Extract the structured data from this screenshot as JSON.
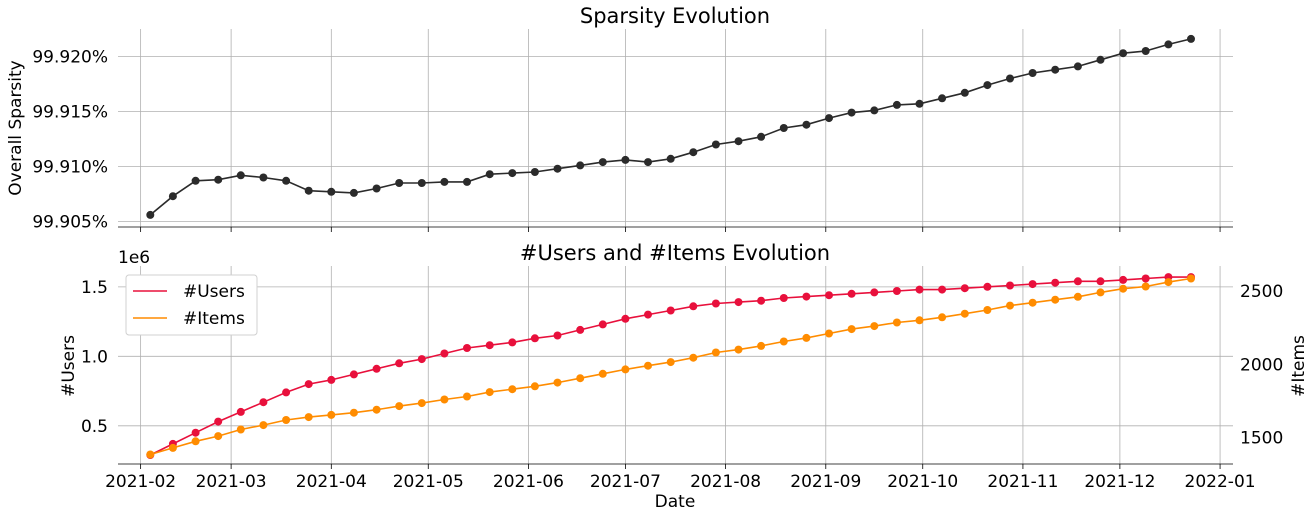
{
  "chart_data": [
    {
      "type": "line",
      "title": "Sparsity Evolution",
      "xlabel": "",
      "ylabel": "Overall Sparsity",
      "y_unit": "%",
      "x_axis": "date",
      "x_range": [
        "2021-01-25",
        "2022-01-05"
      ],
      "ylim": [
        99.9045,
        99.9225
      ],
      "yticks": [
        99.905,
        99.91,
        99.915,
        99.92
      ],
      "ytick_labels": [
        "99.905%",
        "99.910%",
        "99.915%",
        "99.920%"
      ],
      "grid": true,
      "color": "#2b2b2b",
      "series": [
        {
          "x": [
            "2021-02-04",
            "2021-02-11",
            "2021-02-18",
            "2021-02-25",
            "2021-03-04",
            "2021-03-11",
            "2021-03-18",
            "2021-03-25",
            "2021-04-01",
            "2021-04-08",
            "2021-04-15",
            "2021-04-22",
            "2021-04-29",
            "2021-05-06",
            "2021-05-13",
            "2021-05-20",
            "2021-05-27",
            "2021-06-03",
            "2021-06-10",
            "2021-06-17",
            "2021-06-24",
            "2021-07-01",
            "2021-07-08",
            "2021-07-15",
            "2021-07-22",
            "2021-07-29",
            "2021-08-05",
            "2021-08-12",
            "2021-08-19",
            "2021-08-26",
            "2021-09-02",
            "2021-09-09",
            "2021-09-16",
            "2021-09-23",
            "2021-09-30",
            "2021-10-07",
            "2021-10-14",
            "2021-10-21",
            "2021-10-28",
            "2021-11-04",
            "2021-11-11",
            "2021-11-18",
            "2021-11-25",
            "2021-12-02",
            "2021-12-09",
            "2021-12-16",
            "2021-12-23"
          ],
          "values": [
            99.9056,
            99.9073,
            99.9087,
            99.9088,
            99.9092,
            99.909,
            99.9087,
            99.9078,
            99.9077,
            99.9076,
            99.908,
            99.9085,
            99.9085,
            99.9086,
            99.9086,
            99.9093,
            99.9094,
            99.9095,
            99.9098,
            99.9101,
            99.9104,
            99.9106,
            99.9104,
            99.9107,
            99.9113,
            99.912,
            99.9123,
            99.9127,
            99.9135,
            99.9138,
            99.9144,
            99.9149,
            99.9151,
            99.9156,
            99.9157,
            99.9162,
            99.9167,
            99.9174,
            99.918,
            99.9185,
            99.9188,
            99.9191,
            99.9197,
            99.9203,
            99.9205,
            99.9211,
            99.9216
          ]
        }
      ]
    },
    {
      "type": "line",
      "title": "#Users and #Items Evolution",
      "xlabel": "Date",
      "ylabel": "#Users",
      "y_offset_label": "1e6",
      "ylim": [
        0.225,
        1.65
      ],
      "yticks": [
        0.5,
        1.0,
        1.5
      ],
      "ytick_labels": [
        "0.5",
        "1.0",
        "1.5"
      ],
      "y2label": "#Items",
      "y2lim": [
        1320,
        2670
      ],
      "y2ticks": [
        1500,
        2000,
        2500
      ],
      "y2tick_labels": [
        "1500",
        "2000",
        "2500"
      ],
      "x_axis": "date",
      "x_range": [
        "2021-01-25",
        "2022-01-05"
      ],
      "xticks": [
        "2021-02-01",
        "2021-03-01",
        "2021-04-01",
        "2021-05-01",
        "2021-06-01",
        "2021-07-01",
        "2021-08-01",
        "2021-09-01",
        "2021-10-01",
        "2021-11-01",
        "2021-12-01",
        "2022-01-01"
      ],
      "xtick_labels": [
        "2021-02",
        "2021-03",
        "2021-04",
        "2021-05",
        "2021-06",
        "2021-07",
        "2021-08",
        "2021-09",
        "2021-10",
        "2021-11",
        "2021-12",
        "2022-01"
      ],
      "grid": true,
      "legend": "top-left",
      "series": [
        {
          "name": "#Users",
          "axis": "left",
          "color": "#e8103c",
          "x": [
            "2021-02-04",
            "2021-02-11",
            "2021-02-18",
            "2021-02-25",
            "2021-03-04",
            "2021-03-11",
            "2021-03-18",
            "2021-03-25",
            "2021-04-01",
            "2021-04-08",
            "2021-04-15",
            "2021-04-22",
            "2021-04-29",
            "2021-05-06",
            "2021-05-13",
            "2021-05-20",
            "2021-05-27",
            "2021-06-03",
            "2021-06-10",
            "2021-06-17",
            "2021-06-24",
            "2021-07-01",
            "2021-07-08",
            "2021-07-15",
            "2021-07-22",
            "2021-07-29",
            "2021-08-05",
            "2021-08-12",
            "2021-08-19",
            "2021-08-26",
            "2021-09-02",
            "2021-09-09",
            "2021-09-16",
            "2021-09-23",
            "2021-09-30",
            "2021-10-07",
            "2021-10-14",
            "2021-10-21",
            "2021-10-28",
            "2021-11-04",
            "2021-11-11",
            "2021-11-18",
            "2021-11-25",
            "2021-12-02",
            "2021-12-09",
            "2021-12-16",
            "2021-12-23"
          ],
          "values": [
            0.29,
            0.37,
            0.45,
            0.53,
            0.6,
            0.67,
            0.74,
            0.8,
            0.83,
            0.87,
            0.91,
            0.95,
            0.98,
            1.02,
            1.06,
            1.08,
            1.1,
            1.13,
            1.15,
            1.19,
            1.23,
            1.27,
            1.3,
            1.33,
            1.36,
            1.38,
            1.39,
            1.4,
            1.42,
            1.43,
            1.44,
            1.45,
            1.46,
            1.47,
            1.48,
            1.48,
            1.49,
            1.5,
            1.51,
            1.52,
            1.53,
            1.54,
            1.54,
            1.55,
            1.56,
            1.57,
            1.57
          ]
        },
        {
          "name": "#Items",
          "axis": "right",
          "color": "#ff8c00",
          "x": [
            "2021-02-04",
            "2021-02-11",
            "2021-02-18",
            "2021-02-25",
            "2021-03-04",
            "2021-03-11",
            "2021-03-18",
            "2021-03-25",
            "2021-04-01",
            "2021-04-08",
            "2021-04-15",
            "2021-04-22",
            "2021-04-29",
            "2021-05-06",
            "2021-05-13",
            "2021-05-20",
            "2021-05-27",
            "2021-06-03",
            "2021-06-10",
            "2021-06-17",
            "2021-06-24",
            "2021-07-01",
            "2021-07-08",
            "2021-07-15",
            "2021-07-22",
            "2021-07-29",
            "2021-08-05",
            "2021-08-12",
            "2021-08-19",
            "2021-08-26",
            "2021-09-02",
            "2021-09-09",
            "2021-09-16",
            "2021-09-23",
            "2021-09-30",
            "2021-10-07",
            "2021-10-14",
            "2021-10-21",
            "2021-10-28",
            "2021-11-04",
            "2021-11-11",
            "2021-11-18",
            "2021-11-25",
            "2021-12-02",
            "2021-12-09",
            "2021-12-16",
            "2021-12-23"
          ],
          "values": [
            1385,
            1430,
            1475,
            1510,
            1555,
            1585,
            1620,
            1640,
            1655,
            1670,
            1690,
            1715,
            1735,
            1760,
            1780,
            1810,
            1830,
            1850,
            1875,
            1905,
            1935,
            1965,
            1990,
            2015,
            2045,
            2080,
            2100,
            2125,
            2155,
            2180,
            2210,
            2240,
            2260,
            2285,
            2300,
            2320,
            2345,
            2370,
            2400,
            2420,
            2440,
            2460,
            2490,
            2515,
            2530,
            2560,
            2585
          ]
        }
      ]
    }
  ]
}
